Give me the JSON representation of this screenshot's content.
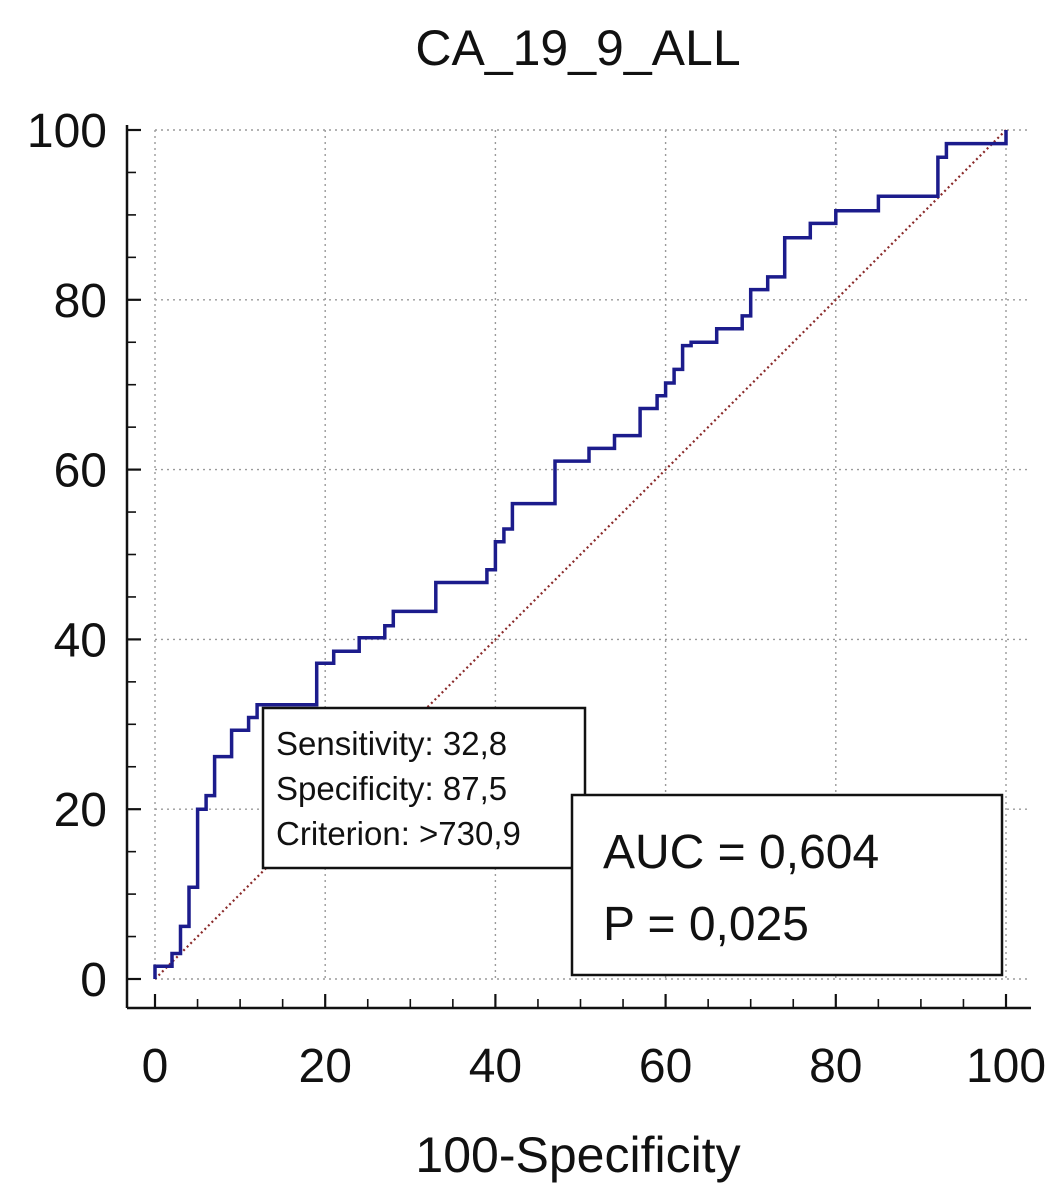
{
  "chart_data": {
    "type": "line",
    "title": "CA_19_9_ALL",
    "xlabel": "100-Specificity",
    "ylabel": "",
    "xlim": [
      0,
      100
    ],
    "ylim": [
      0,
      100
    ],
    "x_ticks": [
      "0",
      "20",
      "40",
      "60",
      "80",
      "100"
    ],
    "y_ticks": [
      "0",
      "20",
      "40",
      "60",
      "80",
      "100"
    ],
    "grid": true,
    "series": [
      {
        "name": "",
        "style": "step",
        "color": "#1c1c8c",
        "points": [
          [
            0,
            0
          ],
          [
            0,
            1.5
          ],
          [
            2,
            1.5
          ],
          [
            2,
            3.0
          ],
          [
            3,
            3.0
          ],
          [
            3,
            6.2
          ],
          [
            4,
            6.2
          ],
          [
            4,
            10.8
          ],
          [
            5,
            10.8
          ],
          [
            5,
            20.0
          ],
          [
            6,
            20.0
          ],
          [
            6,
            21.6
          ],
          [
            7,
            21.6
          ],
          [
            7,
            26.2
          ],
          [
            9,
            26.2
          ],
          [
            9,
            29.3
          ],
          [
            11,
            29.3
          ],
          [
            11,
            30.8
          ],
          [
            12,
            30.8
          ],
          [
            12,
            32.3
          ],
          [
            19,
            32.3
          ],
          [
            19,
            37.2
          ],
          [
            21,
            37.2
          ],
          [
            21,
            38.6
          ],
          [
            24,
            38.6
          ],
          [
            24,
            40.2
          ],
          [
            27,
            40.2
          ],
          [
            27,
            41.6
          ],
          [
            28,
            41.6
          ],
          [
            28,
            43.3
          ],
          [
            33,
            43.3
          ],
          [
            33,
            46.7
          ],
          [
            39,
            46.7
          ],
          [
            39,
            48.2
          ],
          [
            40,
            48.2
          ],
          [
            40,
            51.5
          ],
          [
            41,
            51.5
          ],
          [
            41,
            53.0
          ],
          [
            42,
            53.0
          ],
          [
            42,
            56.0
          ],
          [
            47,
            56.0
          ],
          [
            47,
            61.0
          ],
          [
            51,
            61.0
          ],
          [
            51,
            62.5
          ],
          [
            54,
            62.5
          ],
          [
            54,
            64.0
          ],
          [
            57,
            64.0
          ],
          [
            57,
            67.2
          ],
          [
            59,
            67.2
          ],
          [
            59,
            68.7
          ],
          [
            60,
            68.7
          ],
          [
            60,
            70.2
          ],
          [
            61,
            70.2
          ],
          [
            61,
            71.8
          ],
          [
            62,
            71.8
          ],
          [
            62,
            74.6
          ],
          [
            63,
            74.6
          ],
          [
            63,
            75.0
          ],
          [
            66,
            75.0
          ],
          [
            66,
            76.6
          ],
          [
            69,
            76.6
          ],
          [
            69,
            78.1
          ],
          [
            70,
            78.1
          ],
          [
            70,
            81.2
          ],
          [
            72,
            81.2
          ],
          [
            72,
            82.7
          ],
          [
            74,
            82.7
          ],
          [
            74,
            87.3
          ],
          [
            77,
            87.3
          ],
          [
            77,
            89.0
          ],
          [
            80,
            89.0
          ],
          [
            80,
            90.5
          ],
          [
            85,
            90.5
          ],
          [
            85,
            92.2
          ],
          [
            92,
            92.2
          ],
          [
            92,
            96.8
          ],
          [
            93,
            96.8
          ],
          [
            93,
            98.4
          ],
          [
            100,
            98.4
          ],
          [
            100,
            100
          ]
        ]
      },
      {
        "name": "",
        "style": "dotted",
        "color": "#8a2a2a",
        "points": [
          [
            0,
            0
          ],
          [
            100,
            100
          ]
        ]
      }
    ],
    "annotations": {
      "criterion_box": {
        "lines": [
          "Sensitivity: 32,8",
          "Specificity: 87,5",
          "Criterion: >730,9"
        ],
        "anchor": [
          12.5,
          32.8
        ]
      },
      "auc_box": {
        "lines": [
          "AUC = 0,604",
          "P = 0,025"
        ]
      }
    }
  }
}
